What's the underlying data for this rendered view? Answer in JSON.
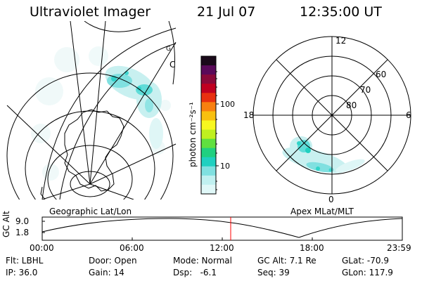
{
  "header": {
    "instrument": "Ultraviolet Imager",
    "date": "21 Jul 07",
    "time": "12:35:00 UT"
  },
  "colorbar": {
    "unit_label": "photon cm⁻²s⁻¹",
    "ticks": [
      "100",
      "10"
    ],
    "colors": [
      "#1a0a1a",
      "#5a0a5a",
      "#8a0a3a",
      "#c00020",
      "#e83010",
      "#f88010",
      "#f8c010",
      "#f8f820",
      "#c0f020",
      "#60e040",
      "#20d080",
      "#20d0c0",
      "#80e0e0",
      "#c0f0f0",
      "#e0f8f8"
    ]
  },
  "left_panel": {
    "caption": "Geographic Lat/Lon",
    "annotations": [
      "C",
      "G"
    ]
  },
  "right_panel": {
    "caption": "Apex MLat/MLT",
    "mlt_labels": {
      "top": "12",
      "left": "18",
      "right": "6",
      "bottom": "0"
    },
    "lat_labels": [
      "60",
      "70",
      "80"
    ]
  },
  "altitude_strip": {
    "label": "GC Alt",
    "y_ticks": [
      "9.0",
      "1.8"
    ],
    "x_ticks": [
      "00:00",
      "06:00",
      "12:00",
      "18:00",
      "23:59"
    ],
    "current_time_color": "#ff0000"
  },
  "status": {
    "flt": "Flt: LBHL",
    "ip": "IP: 36.0",
    "door": "Door: Open",
    "gain": "Gain: 14",
    "mode": "Mode: Normal",
    "dsp": "Dsp:   -6.1",
    "gc_alt": "GC Alt: 7.1 Re",
    "seq": "Seq: 39",
    "glat": "GLat: -70.9",
    "glon": "GLon: 117.9"
  }
}
